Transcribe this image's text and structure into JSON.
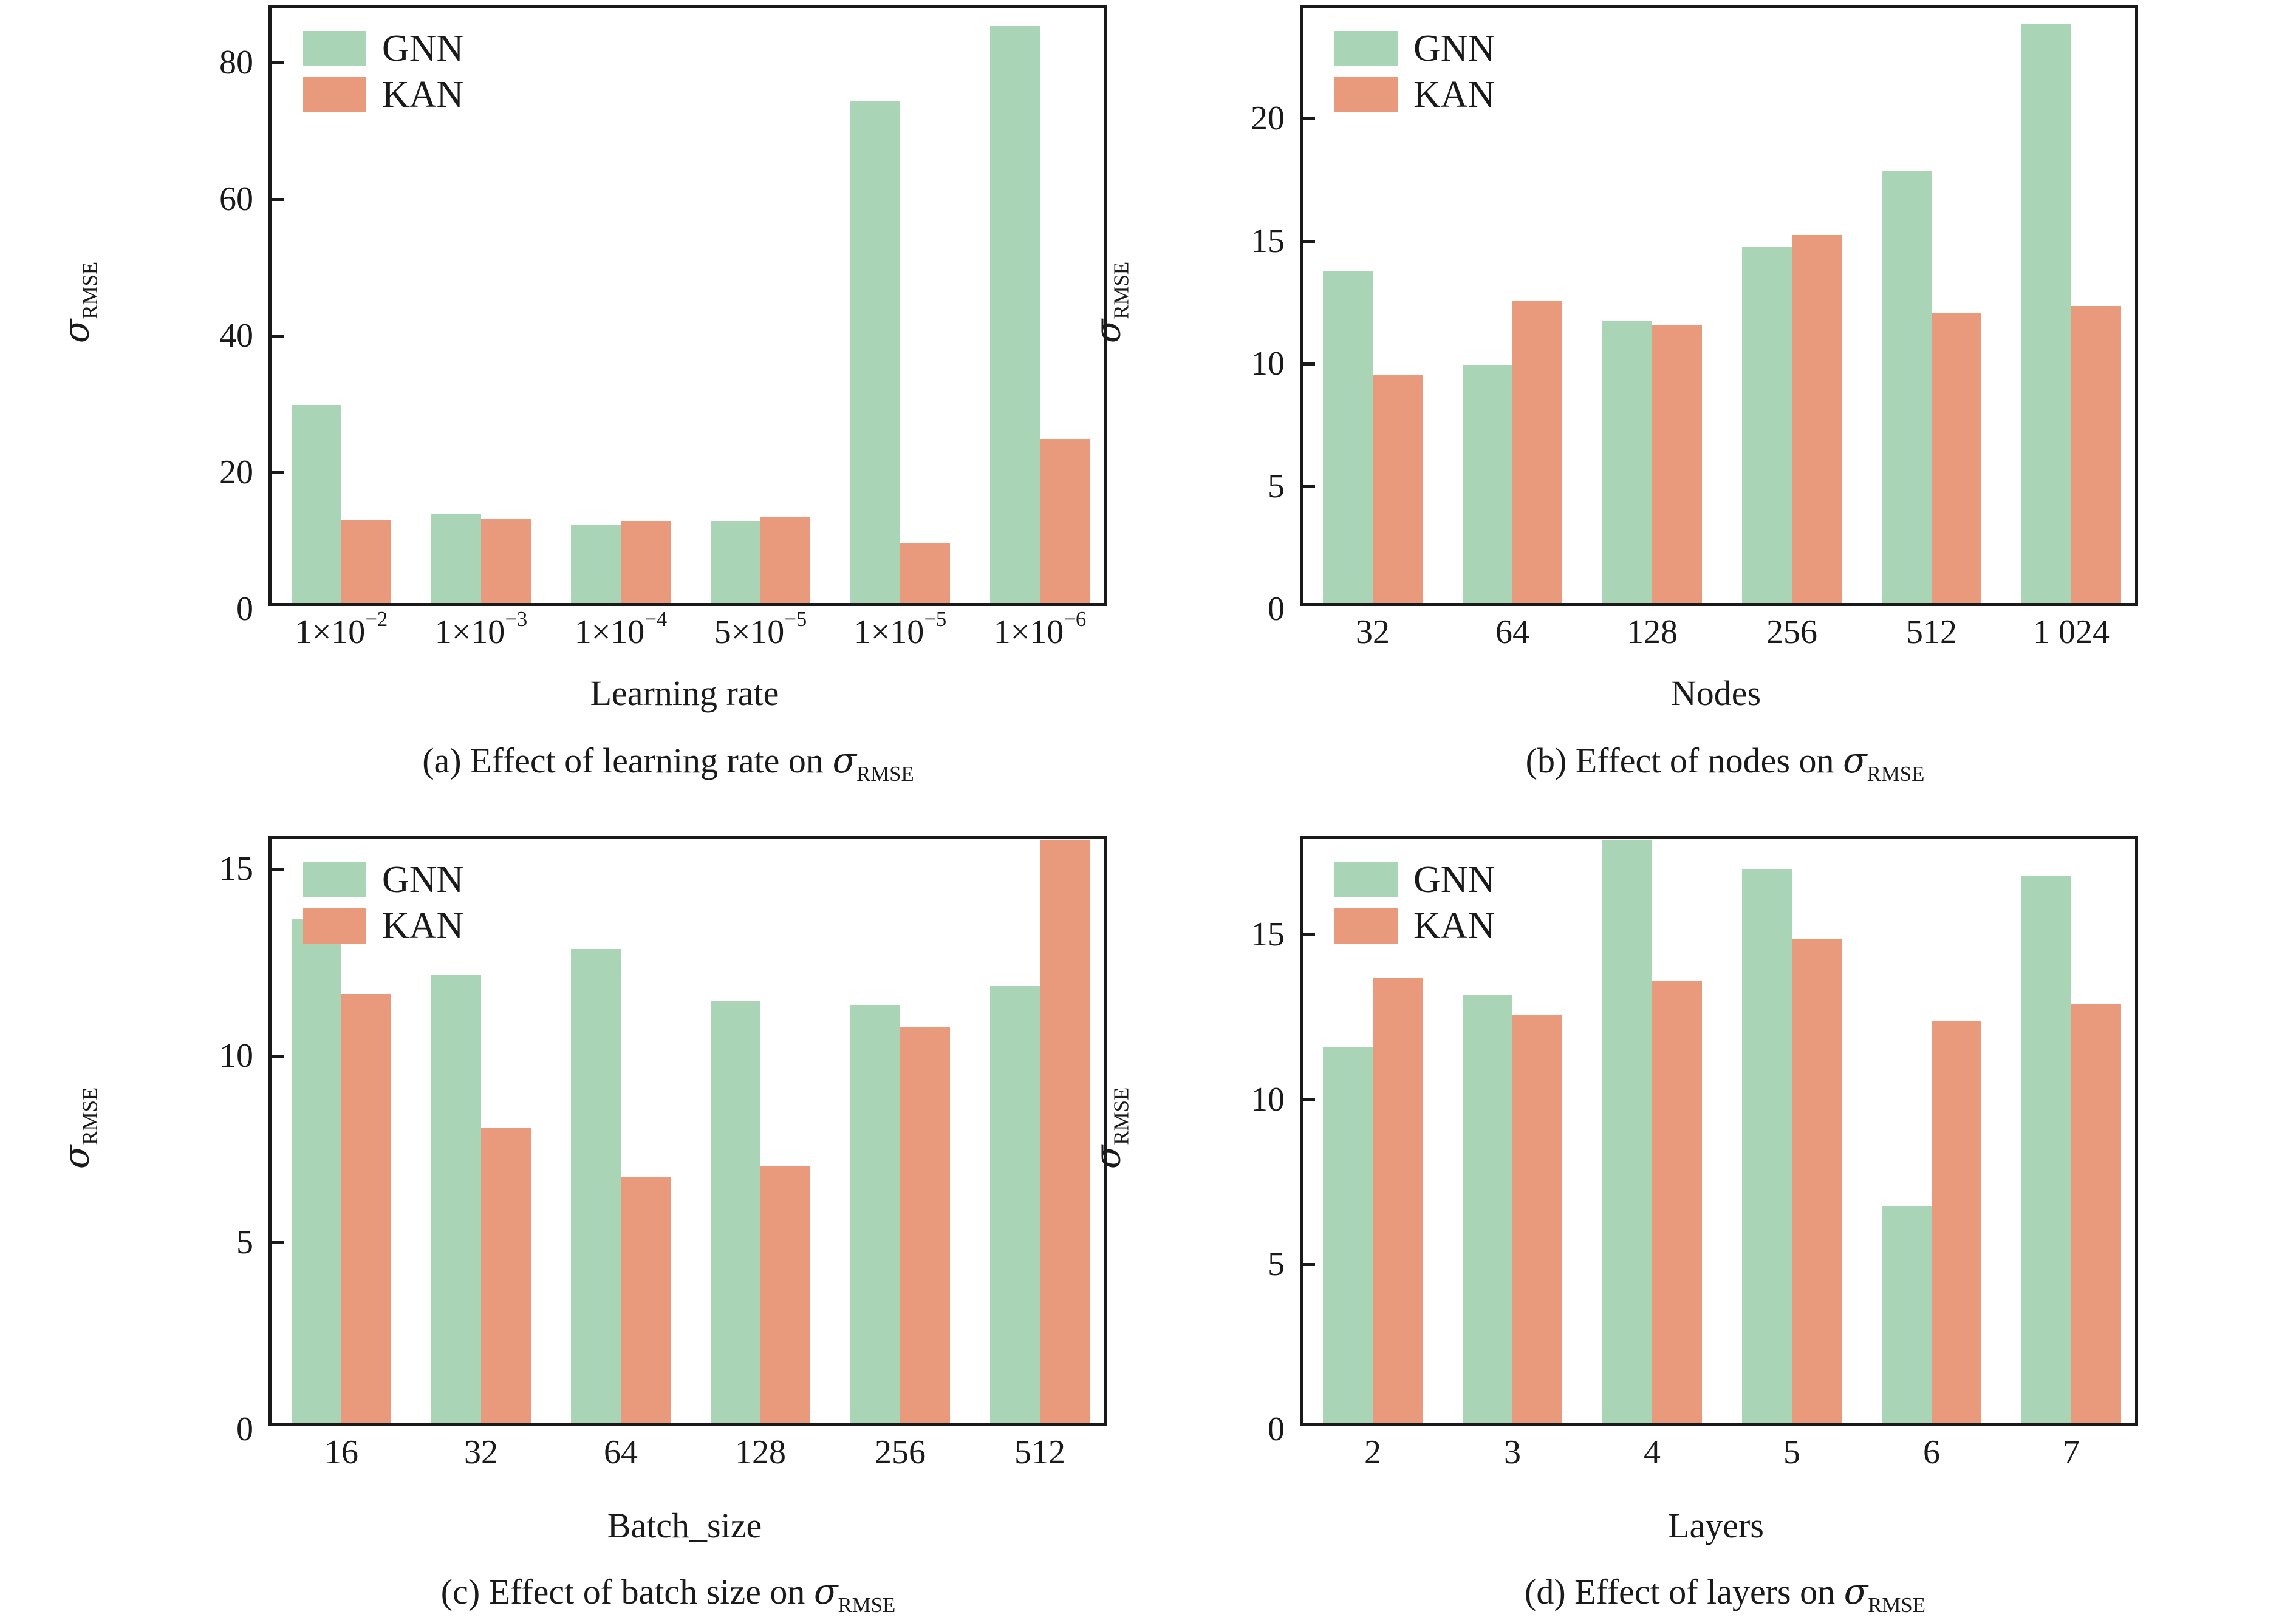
{
  "labels": {
    "sigma": "σ",
    "sigma_sub": "RMSE",
    "series": [
      "GNN",
      "KAN"
    ]
  },
  "colors": {
    "gnn": "#a9d4b5",
    "kan": "#e99a7d",
    "axis": "#1a1a1a",
    "background": "#ffffff"
  },
  "chart_data": [
    {
      "type": "bar",
      "panel": "a",
      "title": "",
      "xlabel": "Learning rate",
      "ylabel": "σ_RMSE",
      "caption_prefix": "(a) Effect of learning rate on ",
      "categories": [
        "1×10^-2",
        "1×10^-3",
        "1×10^-4",
        "5×10^-5",
        "1×10^-5",
        "1×10^-6"
      ],
      "xticklabels": [
        {
          "base": "1×10",
          "exp": "−2"
        },
        {
          "base": "1×10",
          "exp": "−3"
        },
        {
          "base": "1×10",
          "exp": "−4"
        },
        {
          "base": "5×10",
          "exp": "−5"
        },
        {
          "base": "1×10",
          "exp": "−5"
        },
        {
          "base": "1×10",
          "exp": "−6"
        }
      ],
      "series": [
        {
          "name": "GNN",
          "values": [
            29.0,
            13.0,
            11.5,
            12.0,
            73.5,
            84.5
          ]
        },
        {
          "name": "KAN",
          "values": [
            12.2,
            12.3,
            12.0,
            12.6,
            8.7,
            24.0
          ]
        }
      ],
      "yticks": [
        0,
        20,
        40,
        60,
        80
      ],
      "ylim": [
        0,
        88
      ],
      "grid": false,
      "legend_position": "upper-left"
    },
    {
      "type": "bar",
      "panel": "b",
      "title": "",
      "xlabel": "Nodes",
      "ylabel": "σ_RMSE",
      "caption_prefix": "(b) Effect of nodes on ",
      "categories": [
        "32",
        "64",
        "128",
        "256",
        "512",
        "1 024"
      ],
      "xticklabels": [
        {
          "base": "32"
        },
        {
          "base": "64"
        },
        {
          "base": "128"
        },
        {
          "base": "256"
        },
        {
          "base": "512"
        },
        {
          "base": "1 024"
        }
      ],
      "series": [
        {
          "name": "GNN",
          "values": [
            13.5,
            9.7,
            11.5,
            14.5,
            17.6,
            23.6
          ]
        },
        {
          "name": "KAN",
          "values": [
            9.3,
            12.3,
            11.3,
            15.0,
            11.8,
            12.1
          ]
        }
      ],
      "yticks": [
        0,
        5,
        10,
        15,
        20
      ],
      "ylim": [
        0,
        24.5
      ],
      "grid": false,
      "legend_position": "upper-left"
    },
    {
      "type": "bar",
      "panel": "c",
      "title": "",
      "xlabel": "Batch_size",
      "ylabel": "σ_RMSE",
      "caption_prefix": "(c) Effect of batch size on ",
      "categories": [
        "16",
        "32",
        "64",
        "128",
        "256",
        "512"
      ],
      "xticklabels": [
        {
          "base": "16"
        },
        {
          "base": "32"
        },
        {
          "base": "64"
        },
        {
          "base": "128"
        },
        {
          "base": "256"
        },
        {
          "base": "512"
        }
      ],
      "series": [
        {
          "name": "GNN",
          "values": [
            13.5,
            12.0,
            12.7,
            11.3,
            11.2,
            11.7
          ]
        },
        {
          "name": "KAN",
          "values": [
            11.5,
            7.9,
            6.6,
            6.9,
            10.6,
            15.6
          ]
        }
      ],
      "yticks": [
        0,
        5,
        10,
        15
      ],
      "ylim": [
        0,
        15.8
      ],
      "grid": false,
      "legend_position": "upper-left"
    },
    {
      "type": "bar",
      "panel": "d",
      "title": "",
      "xlabel": "Layers",
      "ylabel": "σ_RMSE",
      "caption_prefix": "(d) Effect of layers on ",
      "categories": [
        "2",
        "3",
        "4",
        "5",
        "6",
        "7"
      ],
      "xticklabels": [
        {
          "base": "2"
        },
        {
          "base": "3"
        },
        {
          "base": "4"
        },
        {
          "base": "5"
        },
        {
          "base": "6"
        },
        {
          "base": "7"
        }
      ],
      "series": [
        {
          "name": "GNN",
          "values": [
            11.4,
            13.0,
            17.7,
            16.8,
            6.6,
            16.6
          ]
        },
        {
          "name": "KAN",
          "values": [
            13.5,
            12.4,
            13.4,
            14.7,
            12.2,
            12.7
          ]
        }
      ],
      "yticks": [
        0,
        5,
        10,
        15
      ],
      "ylim": [
        0,
        17.9
      ],
      "grid": false,
      "legend_position": "upper-left"
    }
  ]
}
